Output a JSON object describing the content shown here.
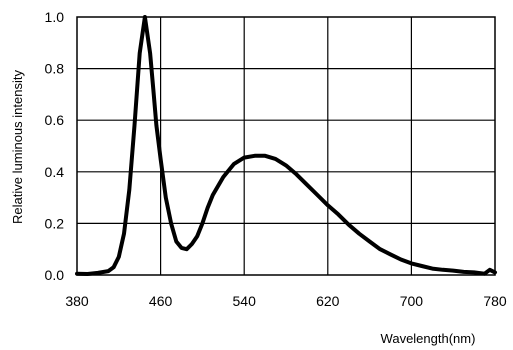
{
  "chart_data": {
    "type": "line",
    "title": "",
    "xlabel": "Wavelength(nm)",
    "ylabel": "Relative luminous intensity",
    "xlim": [
      380,
      780
    ],
    "ylim": [
      0.0,
      1.0
    ],
    "x_ticks": [
      "380",
      "460",
      "540",
      "620",
      "700",
      "780"
    ],
    "y_ticks": [
      "0.0",
      "0.2",
      "0.4",
      "0.6",
      "0.8",
      "1.0"
    ],
    "grid": true,
    "legend": "none",
    "series": [
      {
        "color": "#000000",
        "x": [
          380,
          390,
          400,
          410,
          415,
          420,
          425,
          430,
          435,
          440,
          445,
          450,
          453,
          456,
          460,
          465,
          470,
          475,
          480,
          485,
          490,
          495,
          500,
          505,
          510,
          520,
          530,
          540,
          550,
          560,
          570,
          580,
          590,
          600,
          610,
          620,
          630,
          640,
          650,
          660,
          670,
          680,
          690,
          700,
          710,
          720,
          730,
          740,
          750,
          760,
          770,
          775,
          780
        ],
        "y": [
          0.005,
          0.004,
          0.008,
          0.015,
          0.03,
          0.07,
          0.16,
          0.33,
          0.58,
          0.86,
          1.0,
          0.86,
          0.72,
          0.58,
          0.45,
          0.3,
          0.2,
          0.13,
          0.105,
          0.1,
          0.12,
          0.15,
          0.2,
          0.26,
          0.31,
          0.38,
          0.43,
          0.455,
          0.462,
          0.462,
          0.45,
          0.425,
          0.39,
          0.35,
          0.31,
          0.27,
          0.235,
          0.195,
          0.16,
          0.13,
          0.1,
          0.08,
          0.06,
          0.045,
          0.035,
          0.025,
          0.02,
          0.017,
          0.012,
          0.01,
          0.005,
          0.02,
          0.01
        ]
      }
    ]
  }
}
